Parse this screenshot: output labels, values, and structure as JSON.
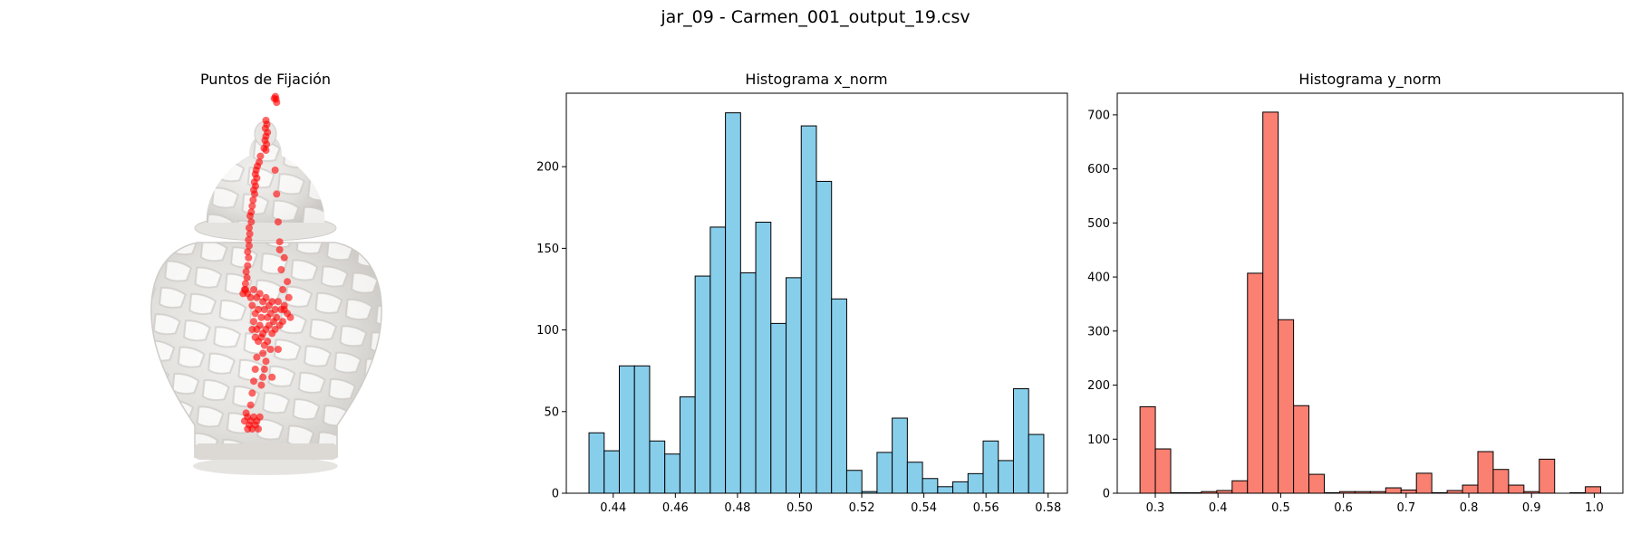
{
  "figure": {
    "suptitle": "jar_09 - Carmen_001_output_19.csv"
  },
  "chart_data": [
    {
      "type": "scatter",
      "title": "Puntos de Fijación",
      "axis": "off",
      "background_image": "white openwork porcelain ginger jar",
      "point_color": "#ff0000",
      "point_alpha": 0.6,
      "x_domain": [
        0,
        1
      ],
      "y_domain": [
        0,
        1
      ],
      "points": [
        [
          0.531,
          0.015
        ],
        [
          0.533,
          0.022
        ],
        [
          0.535,
          0.03
        ],
        [
          0.527,
          0.02
        ],
        [
          0.5,
          0.075
        ],
        [
          0.503,
          0.085
        ],
        [
          0.498,
          0.095
        ],
        [
          0.505,
          0.105
        ],
        [
          0.5,
          0.115
        ],
        [
          0.497,
          0.125
        ],
        [
          0.502,
          0.135
        ],
        [
          0.494,
          0.145
        ],
        [
          0.5,
          0.15
        ],
        [
          0.482,
          0.165
        ],
        [
          0.478,
          0.18
        ],
        [
          0.472,
          0.19
        ],
        [
          0.468,
          0.2
        ],
        [
          0.465,
          0.21
        ],
        [
          0.47,
          0.22
        ],
        [
          0.462,
          0.23
        ],
        [
          0.466,
          0.24
        ],
        [
          0.46,
          0.25
        ],
        [
          0.463,
          0.26
        ],
        [
          0.458,
          0.275
        ],
        [
          0.455,
          0.29
        ],
        [
          0.452,
          0.305
        ],
        [
          0.448,
          0.315
        ],
        [
          0.452,
          0.33
        ],
        [
          0.445,
          0.345
        ],
        [
          0.447,
          0.36
        ],
        [
          0.443,
          0.375
        ],
        [
          0.445,
          0.39
        ],
        [
          0.44,
          0.405
        ],
        [
          0.443,
          0.42
        ],
        [
          0.44,
          0.44
        ],
        [
          0.435,
          0.455
        ],
        [
          0.438,
          0.47
        ],
        [
          0.433,
          0.485
        ],
        [
          0.43,
          0.5
        ],
        [
          0.425,
          0.51
        ],
        [
          0.433,
          0.5
        ],
        [
          0.44,
          0.51
        ],
        [
          0.45,
          0.52
        ],
        [
          0.46,
          0.5
        ],
        [
          0.47,
          0.52
        ],
        [
          0.48,
          0.51
        ],
        [
          0.49,
          0.53
        ],
        [
          0.5,
          0.52
        ],
        [
          0.51,
          0.54
        ],
        [
          0.52,
          0.53
        ],
        [
          0.53,
          0.55
        ],
        [
          0.54,
          0.53
        ],
        [
          0.55,
          0.55
        ],
        [
          0.56,
          0.54
        ],
        [
          0.57,
          0.56
        ],
        [
          0.58,
          0.57
        ],
        [
          0.455,
          0.54
        ],
        [
          0.465,
          0.56
        ],
        [
          0.475,
          0.55
        ],
        [
          0.485,
          0.57
        ],
        [
          0.495,
          0.55
        ],
        [
          0.505,
          0.57
        ],
        [
          0.515,
          0.56
        ],
        [
          0.525,
          0.58
        ],
        [
          0.535,
          0.57
        ],
        [
          0.545,
          0.59
        ],
        [
          0.46,
          0.58
        ],
        [
          0.47,
          0.6
        ],
        [
          0.48,
          0.59
        ],
        [
          0.49,
          0.61
        ],
        [
          0.5,
          0.6
        ],
        [
          0.51,
          0.59
        ],
        [
          0.52,
          0.61
        ],
        [
          0.53,
          0.6
        ],
        [
          0.455,
          0.6
        ],
        [
          0.465,
          0.62
        ],
        [
          0.475,
          0.63
        ],
        [
          0.485,
          0.62
        ],
        [
          0.495,
          0.64
        ],
        [
          0.505,
          0.63
        ],
        [
          0.515,
          0.65
        ],
        [
          0.49,
          0.66
        ],
        [
          0.5,
          0.68
        ],
        [
          0.495,
          0.7
        ],
        [
          0.49,
          0.72
        ],
        [
          0.485,
          0.74
        ],
        [
          0.47,
          0.67
        ],
        [
          0.465,
          0.7
        ],
        [
          0.46,
          0.73
        ],
        [
          0.455,
          0.76
        ],
        [
          0.45,
          0.79
        ],
        [
          0.435,
          0.81
        ],
        [
          0.44,
          0.82
        ],
        [
          0.45,
          0.83
        ],
        [
          0.46,
          0.82
        ],
        [
          0.47,
          0.83
        ],
        [
          0.48,
          0.82
        ],
        [
          0.445,
          0.84
        ],
        [
          0.455,
          0.85
        ],
        [
          0.465,
          0.84
        ],
        [
          0.475,
          0.85
        ],
        [
          0.43,
          0.83
        ],
        [
          0.44,
          0.85
        ],
        [
          0.53,
          0.2
        ],
        [
          0.535,
          0.26
        ],
        [
          0.54,
          0.33
        ],
        [
          0.545,
          0.4
        ],
        [
          0.55,
          0.45
        ],
        [
          0.555,
          0.5
        ],
        [
          0.56,
          0.55
        ],
        [
          0.555,
          0.58
        ],
        [
          0.54,
          0.65
        ],
        [
          0.52,
          0.72
        ],
        [
          0.545,
          0.38
        ],
        [
          0.56,
          0.42
        ],
        [
          0.57,
          0.48
        ],
        [
          0.575,
          0.52
        ]
      ]
    },
    {
      "type": "bar",
      "title": "Histograma x_norm",
      "bar_color": "#87ceeb",
      "edge_color": "#000000",
      "bin_edges_start": 0.4322,
      "bin_width": 0.00488,
      "values": [
        37,
        26,
        78,
        78,
        32,
        24,
        59,
        133,
        163,
        233,
        135,
        166,
        104,
        132,
        225,
        191,
        119,
        14,
        1,
        25,
        46,
        19,
        9,
        4,
        7,
        12,
        32,
        20,
        64,
        36
      ],
      "xlim": [
        0.4249,
        0.5862
      ],
      "ylim": [
        0,
        245
      ],
      "xticks": [
        0.44,
        0.46,
        0.48,
        0.5,
        0.52,
        0.54,
        0.56,
        0.58
      ],
      "xtick_labels": [
        "0.44",
        "0.46",
        "0.48",
        "0.50",
        "0.52",
        "0.54",
        "0.56",
        "0.58"
      ],
      "yticks": [
        0,
        50,
        100,
        150,
        200
      ],
      "ytick_labels": [
        "0",
        "50",
        "100",
        "150",
        "200"
      ]
    },
    {
      "type": "bar",
      "title": "Histograma y_norm",
      "bar_color": "#fa8072",
      "edge_color": "#000000",
      "bin_edges_start": 0.2756,
      "bin_width": 0.02449,
      "values": [
        160,
        82,
        1,
        1,
        3,
        5,
        23,
        407,
        705,
        321,
        162,
        35,
        1,
        3,
        3,
        3,
        10,
        6,
        37,
        1,
        5,
        15,
        77,
        44,
        15,
        3,
        63,
        0,
        1,
        12
      ],
      "xlim": [
        0.2393,
        1.0456
      ],
      "ylim": [
        0,
        740
      ],
      "xticks": [
        0.3,
        0.4,
        0.5,
        0.6,
        0.7,
        0.8,
        0.9,
        1.0
      ],
      "xtick_labels": [
        "0.3",
        "0.4",
        "0.5",
        "0.6",
        "0.7",
        "0.8",
        "0.9",
        "1.0"
      ],
      "yticks": [
        0,
        100,
        200,
        300,
        400,
        500,
        600,
        700
      ],
      "ytick_labels": [
        "0",
        "100",
        "200",
        "300",
        "400",
        "500",
        "600",
        "700"
      ]
    }
  ]
}
